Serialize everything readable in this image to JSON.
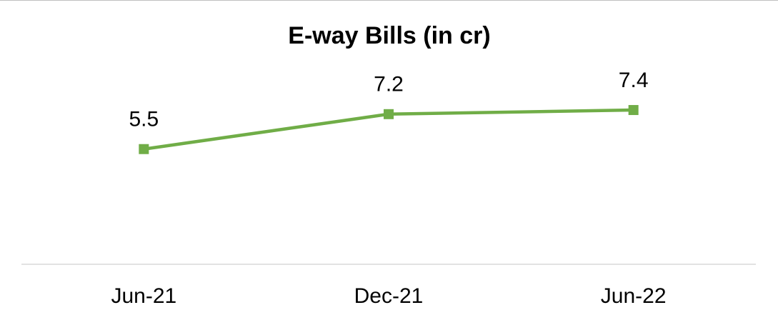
{
  "chart_data": {
    "type": "line",
    "title": "E-way Bills (in cr)",
    "categories": [
      "Jun-21",
      "Dec-21",
      "Jun-22"
    ],
    "series": [
      {
        "name": null,
        "color": "#70ad47",
        "values": [
          5.5,
          7.2,
          7.4
        ]
      }
    ],
    "ylim": [
      0,
      9
    ]
  }
}
